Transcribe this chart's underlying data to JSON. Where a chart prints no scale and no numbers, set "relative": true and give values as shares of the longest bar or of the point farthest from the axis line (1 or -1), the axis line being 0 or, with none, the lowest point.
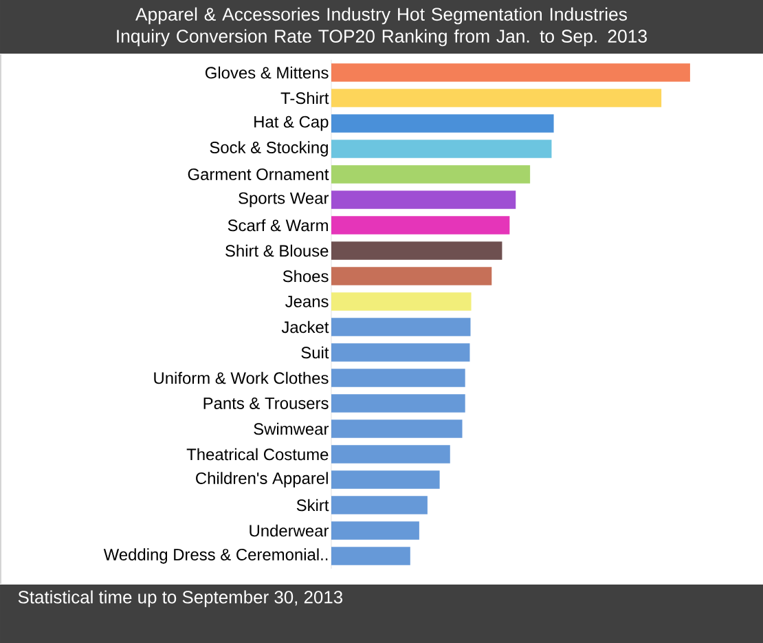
{
  "chart_data": {
    "type": "bar",
    "orientation": "horizontal",
    "relative": true,
    "title": "Apparel & Accessories Industry Hot Segmentation Industries Inquiry Conversion Rate TOP20 Ranking from Jan. to Sep. 2013",
    "categories": [
      "Gloves & Mittens",
      "T-Shirt",
      "Hat & Cap",
      "Sock & Stocking",
      "Garment Ornament",
      "Sports Wear",
      "Scarf & Warm",
      "Shirt & Blouse",
      "Shoes",
      "Jeans",
      "Jacket",
      "Suit",
      "Uniform & Work Clothes",
      "Pants & Trousers",
      "Swimwear",
      "Theatrical Costume",
      "Children's Apparel",
      "Skirt",
      "Underwear",
      "Wedding Dress & Ceremonial.."
    ],
    "values": [
      1.0,
      0.92,
      0.62,
      0.614,
      0.554,
      0.514,
      0.497,
      0.476,
      0.447,
      0.39,
      0.388,
      0.386,
      0.373,
      0.373,
      0.365,
      0.331,
      0.302,
      0.268,
      0.245,
      0.22
    ],
    "colors": [
      "#f47f57",
      "#fdd55a",
      "#4a90d9",
      "#6cc5e0",
      "#a6d46a",
      "#9f4fd3",
      "#e535b9",
      "#6e5050",
      "#c67058",
      "#f2ee7a",
      "#6699d8",
      "#6699d8",
      "#6699d8",
      "#6699d8",
      "#6699d8",
      "#6699d8",
      "#6699d8",
      "#6699d8",
      "#6699d8",
      "#6699d8"
    ],
    "annotations": [
      "Statistical time up to September 30, 2013"
    ]
  }
}
